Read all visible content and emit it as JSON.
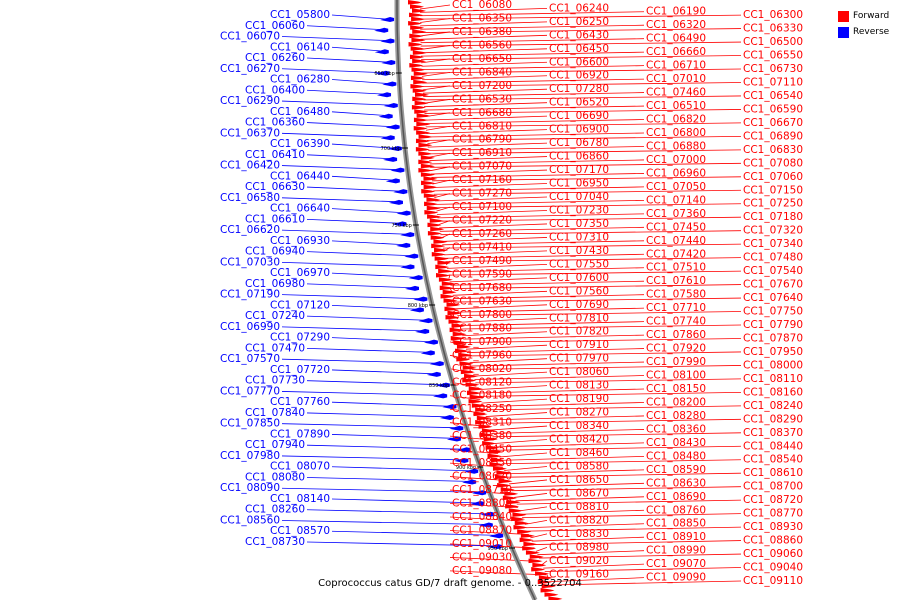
{
  "caption": "Coprococcus catus GD/7 draft genome. - 0..3522704",
  "legend": [
    {
      "label": "Forward",
      "color": "#ff0000"
    },
    {
      "label": "Reverse",
      "color": "#0000ff"
    }
  ],
  "scale_ticks": [
    "650 kbp",
    "700 kbp",
    "750 kbp",
    "800 kbp",
    "850 kbp",
    "900 kbp",
    "950 kbp"
  ],
  "forward_labels": [
    "CC1_06080",
    "CC1_06240",
    "CC1_06190",
    "CC1_06300",
    "CC1_06350",
    "CC1_06250",
    "CC1_06320",
    "CC1_06330",
    "CC1_06380",
    "CC1_06430",
    "CC1_06490",
    "CC1_06500",
    "CC1_06560",
    "CC1_06450",
    "CC1_06660",
    "CC1_06550",
    "CC1_06650",
    "CC1_06600",
    "CC1_06710",
    "CC1_06730",
    "CC1_06840",
    "CC1_06920",
    "CC1_07010",
    "CC1_07110",
    "CC1_07200",
    "CC1_07280",
    "CC1_07460",
    "CC1_06540",
    "CC1_06530",
    "CC1_06520",
    "CC1_06510",
    "CC1_06590",
    "CC1_06680",
    "CC1_06690",
    "CC1_06820",
    "CC1_06670",
    "CC1_06810",
    "CC1_06900",
    "CC1_06800",
    "CC1_06890",
    "CC1_06790",
    "CC1_06780",
    "CC1_06880",
    "CC1_06830",
    "CC1_06910",
    "CC1_06860",
    "CC1_07000",
    "CC1_07080",
    "CC1_07070",
    "CC1_07170",
    "CC1_06960",
    "CC1_07060",
    "CC1_07160",
    "CC1_06950",
    "CC1_07050",
    "CC1_07150",
    "CC1_07270",
    "CC1_07040",
    "CC1_07140",
    "CC1_07250",
    "CC1_07100",
    "CC1_07230",
    "CC1_07360",
    "CC1_07180",
    "CC1_07220",
    "CC1_07350",
    "CC1_07450",
    "CC1_07320",
    "CC1_07260",
    "CC1_07310",
    "CC1_07440",
    "CC1_07340",
    "CC1_07410",
    "CC1_07430",
    "CC1_07420",
    "CC1_07480",
    "CC1_07490",
    "CC1_07550",
    "CC1_07510",
    "CC1_07540",
    "CC1_07590",
    "CC1_07600",
    "CC1_07610",
    "CC1_07670",
    "CC1_07680",
    "CC1_07560",
    "CC1_07580",
    "CC1_07640",
    "CC1_07630",
    "CC1_07690",
    "CC1_07710",
    "CC1_07750",
    "CC1_07800",
    "CC1_07810",
    "CC1_07740",
    "CC1_07790",
    "CC1_07880",
    "CC1_07820",
    "CC1_07860",
    "CC1_07870",
    "CC1_07900",
    "CC1_07910",
    "CC1_07920",
    "CC1_07950",
    "CC1_07960",
    "CC1_07970",
    "CC1_07990",
    "CC1_08000",
    "CC1_08020",
    "CC1_08060",
    "CC1_08100",
    "CC1_08110",
    "CC1_08120",
    "CC1_08130",
    "CC1_08150",
    "CC1_08160",
    "CC1_08180",
    "CC1_08190",
    "CC1_08200",
    "CC1_08240",
    "CC1_08250",
    "CC1_08270",
    "CC1_08280",
    "CC1_08290",
    "CC1_08310",
    "CC1_08340",
    "CC1_08360",
    "CC1_08370",
    "CC1_08380",
    "CC1_08420",
    "CC1_08430",
    "CC1_08440",
    "CC1_08450",
    "CC1_08460",
    "CC1_08480",
    "CC1_08540",
    "CC1_08550",
    "CC1_08580",
    "CC1_08590",
    "CC1_08610",
    "CC1_08620",
    "CC1_08650",
    "CC1_08630",
    "CC1_08700",
    "CC1_08710",
    "CC1_08670",
    "CC1_08690",
    "CC1_08720",
    "CC1_08800",
    "CC1_08810",
    "CC1_08760",
    "CC1_08770",
    "CC1_08840",
    "CC1_08820",
    "CC1_08850",
    "CC1_08930",
    "CC1_08870",
    "CC1_08830",
    "CC1_08910",
    "CC1_08860",
    "CC1_09010",
    "CC1_08980",
    "CC1_08990",
    "CC1_09060",
    "CC1_09030",
    "CC1_09020",
    "CC1_09070",
    "CC1_09040",
    "CC1_09080",
    "CC1_09160",
    "CC1_09090",
    "CC1_09110"
  ],
  "reverse_labels": [
    "CC1_05800",
    "CC1_06060",
    "CC1_06070",
    "CC1_06140",
    "CC1_06260",
    "CC1_06270",
    "CC1_06280",
    "CC1_06400",
    "CC1_06290",
    "CC1_06480",
    "CC1_06360",
    "CC1_06370",
    "CC1_06390",
    "CC1_06410",
    "CC1_06420",
    "CC1_06440",
    "CC1_06630",
    "CC1_06580",
    "CC1_06640",
    "CC1_06610",
    "CC1_06620",
    "CC1_06930",
    "CC1_06940",
    "CC1_07030",
    "CC1_06970",
    "CC1_06980",
    "CC1_07190",
    "CC1_07120",
    "CC1_07240",
    "CC1_06990",
    "CC1_07290",
    "CC1_07470",
    "CC1_07570",
    "CC1_07720",
    "CC1_07730",
    "CC1_07770",
    "CC1_07760",
    "CC1_07840",
    "CC1_07850",
    "CC1_07890",
    "CC1_07940",
    "CC1_07980",
    "CC1_08070",
    "CC1_08080",
    "CC1_08090",
    "CC1_08140",
    "CC1_08260",
    "CC1_08560",
    "CC1_08570",
    "CC1_08730"
  ]
}
